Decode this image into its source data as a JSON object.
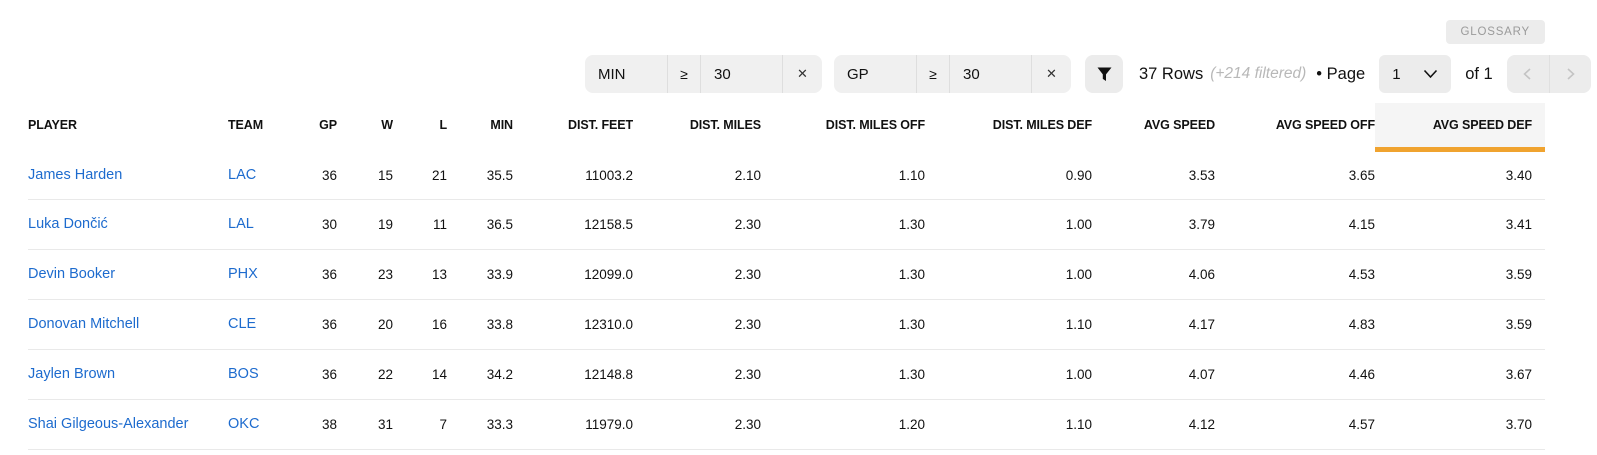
{
  "glossary": {
    "label": "GLOSSARY"
  },
  "icons": {
    "clear": "✕"
  },
  "filter_bar": {
    "filters": [
      {
        "field": "MIN",
        "operator": "≥",
        "value": "30"
      },
      {
        "field": "GP",
        "operator": "≥",
        "value": "30"
      }
    ],
    "rows_count": "37 Rows",
    "filtered_note": "(+214 filtered)",
    "page": {
      "label": "• Page",
      "selected": "1",
      "of": "of 1"
    }
  },
  "table": {
    "columns": [
      {
        "label": "PLAYER",
        "align": "left"
      },
      {
        "label": "TEAM",
        "align": "left"
      },
      {
        "label": "GP",
        "align": "right"
      },
      {
        "label": "W",
        "align": "right"
      },
      {
        "label": "L",
        "align": "right"
      },
      {
        "label": "MIN",
        "align": "right"
      },
      {
        "label": "DIST. FEET",
        "align": "right"
      },
      {
        "label": "DIST. MILES",
        "align": "right"
      },
      {
        "label": "DIST. MILES OFF",
        "align": "right"
      },
      {
        "label": "DIST. MILES DEF",
        "align": "right"
      },
      {
        "label": "AVG SPEED",
        "align": "right"
      },
      {
        "label": "AVG SPEED OFF",
        "align": "right"
      },
      {
        "label": "AVG SPEED DEF",
        "align": "right"
      }
    ],
    "sorted_column": "AVG SPEED DEF",
    "sorted_column_index": 12,
    "rows": [
      [
        "James Harden",
        "LAC",
        "36",
        "15",
        "21",
        "35.5",
        "11003.2",
        "2.10",
        "1.10",
        "0.90",
        "3.53",
        "3.65",
        "3.40"
      ],
      [
        "Luka Dončić",
        "LAL",
        "30",
        "19",
        "11",
        "36.5",
        "12158.5",
        "2.30",
        "1.30",
        "1.00",
        "3.79",
        "4.15",
        "3.41"
      ],
      [
        "Devin Booker",
        "PHX",
        "36",
        "23",
        "13",
        "33.9",
        "12099.0",
        "2.30",
        "1.30",
        "1.00",
        "4.06",
        "4.53",
        "3.59"
      ],
      [
        "Donovan Mitchell",
        "CLE",
        "36",
        "20",
        "16",
        "33.8",
        "12310.0",
        "2.30",
        "1.30",
        "1.10",
        "4.17",
        "4.83",
        "3.59"
      ],
      [
        "Jaylen Brown",
        "BOS",
        "36",
        "22",
        "14",
        "34.2",
        "12148.8",
        "2.30",
        "1.30",
        "1.00",
        "4.07",
        "4.46",
        "3.67"
      ],
      [
        "Shai Gilgeous-Alexander",
        "OKC",
        "38",
        "31",
        "7",
        "33.3",
        "11979.0",
        "2.30",
        "1.20",
        "1.10",
        "4.12",
        "4.57",
        "3.70"
      ]
    ]
  },
  "colors": {
    "accent_orange": "#f0a32f",
    "link_blue": "#1d6bce",
    "sorted_header_bg": "#f5f5f5"
  }
}
